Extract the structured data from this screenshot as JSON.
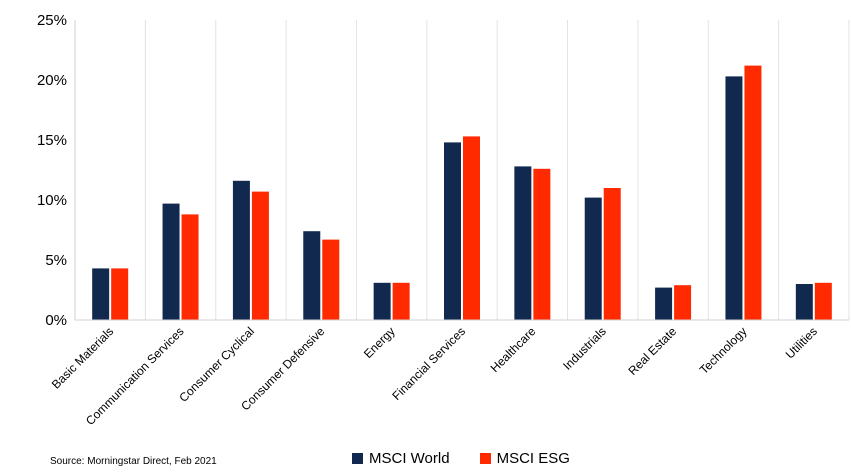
{
  "chart_data": {
    "type": "bar",
    "categories": [
      "Basic Materials",
      "Communication Services",
      "Consumer Cyclical",
      "Consumer Defensive",
      "Energy",
      "Financial Services",
      "Healthcare",
      "Industrials",
      "Real Estate",
      "Technology",
      "Utilities"
    ],
    "series": [
      {
        "name": "MSCI World",
        "color": "#12294F",
        "values": [
          4.3,
          9.7,
          11.6,
          7.4,
          3.1,
          14.8,
          12.8,
          10.2,
          2.7,
          20.3,
          3.0
        ]
      },
      {
        "name": "MSCI ESG",
        "color": "#FF2A00",
        "values": [
          4.3,
          8.8,
          10.7,
          6.7,
          3.1,
          15.3,
          12.6,
          11.0,
          2.9,
          21.2,
          3.1
        ]
      }
    ],
    "ylim": [
      0,
      25
    ],
    "yticks": [
      "0%",
      "5%",
      "10%",
      "15%",
      "20%",
      "25%"
    ],
    "ytick_values": [
      0,
      5,
      10,
      15,
      20,
      25
    ],
    "title": "",
    "xlabel": "",
    "ylabel": "",
    "grid": "vertical separators between categories",
    "legend_position": "bottom-center"
  },
  "legend": {
    "world_label": "MSCI World",
    "esg_label": "MSCI ESG",
    "world_color": "#12294F",
    "esg_color": "#FF2A00"
  },
  "source_text": "Source: Morningstar Direct, Feb 2021"
}
